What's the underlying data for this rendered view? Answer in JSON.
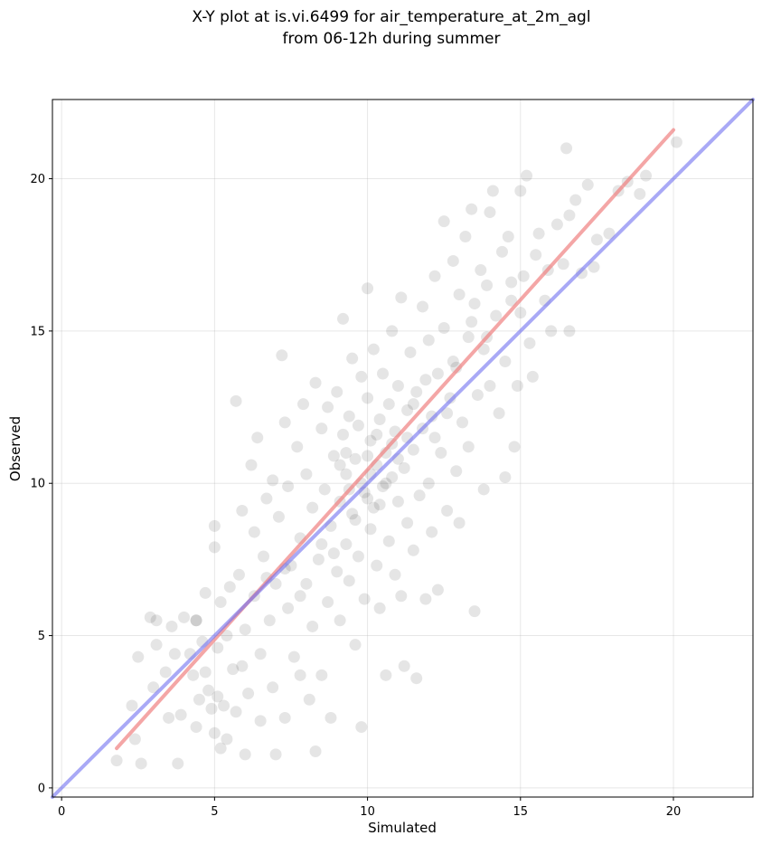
{
  "chart_data": {
    "type": "scatter",
    "title_lines": [
      "X-Y plot at is.vi.6499 for air_temperature_at_2m_agl",
      "from 06-12h during summer"
    ],
    "xlabel": "Simulated",
    "ylabel": "Observed",
    "xlim": [
      -0.3,
      22.6
    ],
    "ylim": [
      -0.3,
      22.6
    ],
    "xticks": [
      0,
      5,
      10,
      15,
      20
    ],
    "yticks": [
      0,
      5,
      10,
      15,
      20
    ],
    "grid": true,
    "point_color": "#000000",
    "point_alpha": 0.1,
    "series": [
      {
        "values": [
          [
            1.8,
            0.9
          ],
          [
            2.3,
            2.7
          ],
          [
            2.4,
            1.6
          ],
          [
            2.5,
            4.3
          ],
          [
            2.6,
            0.8
          ],
          [
            2.9,
            5.6
          ],
          [
            3.0,
            3.3
          ],
          [
            3.1,
            4.7
          ],
          [
            3.1,
            5.5
          ],
          [
            3.4,
            3.8
          ],
          [
            3.5,
            2.3
          ],
          [
            3.6,
            5.3
          ],
          [
            3.7,
            4.4
          ],
          [
            3.8,
            0.8
          ],
          [
            3.9,
            2.4
          ],
          [
            4.0,
            5.6
          ],
          [
            4.2,
            4.4
          ],
          [
            4.3,
            3.7
          ],
          [
            4.4,
            2.0
          ],
          [
            4.4,
            5.5
          ],
          [
            4.5,
            2.9
          ],
          [
            4.6,
            4.8
          ],
          [
            4.7,
            3.8
          ],
          [
            4.7,
            6.4
          ],
          [
            4.8,
            3.2
          ],
          [
            4.9,
            2.6
          ],
          [
            5.0,
            1.8
          ],
          [
            5.0,
            7.9
          ],
          [
            5.0,
            8.6
          ],
          [
            5.1,
            3.0
          ],
          [
            5.1,
            4.6
          ],
          [
            5.2,
            6.1
          ],
          [
            5.2,
            1.3
          ],
          [
            5.3,
            2.7
          ],
          [
            5.4,
            1.6
          ],
          [
            5.4,
            5.0
          ],
          [
            5.5,
            6.6
          ],
          [
            5.6,
            3.9
          ],
          [
            5.7,
            2.5
          ],
          [
            5.7,
            12.7
          ],
          [
            5.8,
            7.0
          ],
          [
            5.9,
            9.1
          ],
          [
            6.0,
            5.2
          ],
          [
            6.0,
            1.1
          ],
          [
            6.1,
            3.1
          ],
          [
            6.2,
            10.6
          ],
          [
            6.3,
            6.3
          ],
          [
            6.3,
            8.4
          ],
          [
            6.4,
            11.5
          ],
          [
            6.5,
            2.2
          ],
          [
            6.5,
            4.4
          ],
          [
            6.6,
            7.6
          ],
          [
            6.7,
            9.5
          ],
          [
            6.8,
            5.5
          ],
          [
            6.9,
            3.3
          ],
          [
            6.9,
            10.1
          ],
          [
            7.0,
            1.1
          ],
          [
            7.0,
            6.7
          ],
          [
            7.1,
            8.9
          ],
          [
            7.2,
            14.2
          ],
          [
            7.3,
            2.3
          ],
          [
            7.3,
            12.0
          ],
          [
            7.4,
            5.9
          ],
          [
            7.4,
            9.9
          ],
          [
            7.5,
            7.3
          ],
          [
            7.6,
            4.3
          ],
          [
            7.7,
            11.2
          ],
          [
            7.8,
            3.7
          ],
          [
            7.8,
            8.2
          ],
          [
            7.9,
            12.6
          ],
          [
            8.0,
            6.7
          ],
          [
            8.0,
            10.3
          ],
          [
            8.1,
            2.9
          ],
          [
            8.2,
            9.2
          ],
          [
            8.2,
            5.3
          ],
          [
            8.3,
            13.3
          ],
          [
            8.3,
            1.2
          ],
          [
            8.4,
            7.5
          ],
          [
            8.5,
            11.8
          ],
          [
            8.5,
            3.7
          ],
          [
            8.6,
            9.8
          ],
          [
            8.7,
            6.1
          ],
          [
            8.7,
            12.5
          ],
          [
            8.8,
            2.3
          ],
          [
            8.8,
            8.6
          ],
          [
            8.9,
            10.9
          ],
          [
            9.0,
            7.1
          ],
          [
            9.0,
            13.0
          ],
          [
            9.1,
            5.5
          ],
          [
            9.1,
            9.4
          ],
          [
            9.2,
            11.6
          ],
          [
            9.2,
            15.4
          ],
          [
            9.3,
            8.0
          ],
          [
            9.3,
            10.3
          ],
          [
            9.4,
            6.8
          ],
          [
            9.4,
            12.2
          ],
          [
            9.5,
            14.1
          ],
          [
            9.5,
            9.0
          ],
          [
            9.6,
            4.7
          ],
          [
            9.6,
            10.8
          ],
          [
            9.7,
            7.6
          ],
          [
            9.7,
            11.9
          ],
          [
            9.8,
            13.5
          ],
          [
            9.8,
            2.0
          ],
          [
            9.9,
            9.7
          ],
          [
            9.9,
            6.2
          ],
          [
            10.0,
            10.9
          ],
          [
            10.0,
            12.8
          ],
          [
            10.0,
            16.4
          ],
          [
            10.1,
            8.5
          ],
          [
            10.1,
            11.4
          ],
          [
            10.2,
            9.2
          ],
          [
            10.2,
            14.4
          ],
          [
            10.3,
            7.3
          ],
          [
            10.3,
            10.6
          ],
          [
            10.4,
            12.1
          ],
          [
            10.4,
            5.9
          ],
          [
            10.5,
            9.9
          ],
          [
            10.5,
            13.6
          ],
          [
            10.6,
            11.0
          ],
          [
            10.6,
            3.7
          ],
          [
            10.7,
            8.1
          ],
          [
            10.7,
            12.6
          ],
          [
            10.8,
            10.2
          ],
          [
            10.8,
            15.0
          ],
          [
            10.9,
            7.0
          ],
          [
            10.9,
            11.7
          ],
          [
            11.0,
            9.4
          ],
          [
            11.0,
            13.2
          ],
          [
            11.1,
            16.1
          ],
          [
            11.1,
            6.3
          ],
          [
            11.2,
            10.5
          ],
          [
            11.2,
            4.0
          ],
          [
            11.3,
            12.4
          ],
          [
            11.3,
            8.7
          ],
          [
            11.4,
            14.3
          ],
          [
            11.5,
            11.1
          ],
          [
            11.5,
            7.8
          ],
          [
            11.6,
            3.6
          ],
          [
            11.6,
            13.0
          ],
          [
            11.7,
            9.6
          ],
          [
            11.8,
            15.8
          ],
          [
            11.8,
            11.8
          ],
          [
            11.9,
            6.2
          ],
          [
            12.0,
            10.0
          ],
          [
            12.0,
            14.7
          ],
          [
            12.1,
            12.2
          ],
          [
            12.1,
            8.4
          ],
          [
            12.2,
            16.8
          ],
          [
            12.3,
            13.6
          ],
          [
            12.3,
            6.5
          ],
          [
            12.4,
            11.0
          ],
          [
            12.5,
            18.6
          ],
          [
            12.5,
            15.1
          ],
          [
            12.6,
            9.1
          ],
          [
            12.7,
            12.8
          ],
          [
            12.8,
            17.3
          ],
          [
            12.8,
            14.0
          ],
          [
            12.9,
            10.4
          ],
          [
            13.0,
            16.2
          ],
          [
            13.0,
            8.7
          ],
          [
            13.1,
            12.0
          ],
          [
            13.2,
            18.1
          ],
          [
            13.3,
            14.8
          ],
          [
            13.3,
            11.2
          ],
          [
            13.4,
            19.0
          ],
          [
            13.5,
            15.9
          ],
          [
            13.5,
            5.8
          ],
          [
            13.6,
            12.9
          ],
          [
            13.7,
            17.0
          ],
          [
            13.8,
            9.8
          ],
          [
            13.8,
            14.4
          ],
          [
            13.9,
            16.5
          ],
          [
            14.0,
            18.9
          ],
          [
            14.0,
            13.2
          ],
          [
            14.1,
            19.6
          ],
          [
            14.2,
            15.5
          ],
          [
            14.3,
            12.3
          ],
          [
            14.4,
            17.6
          ],
          [
            14.5,
            10.2
          ],
          [
            14.5,
            14.0
          ],
          [
            14.6,
            18.1
          ],
          [
            14.7,
            16.0
          ],
          [
            14.8,
            11.2
          ],
          [
            14.9,
            13.2
          ],
          [
            15.0,
            19.6
          ],
          [
            15.0,
            15.6
          ],
          [
            15.1,
            16.8
          ],
          [
            15.2,
            20.1
          ],
          [
            15.3,
            14.6
          ],
          [
            15.4,
            13.5
          ],
          [
            15.5,
            17.5
          ],
          [
            15.6,
            18.2
          ],
          [
            15.8,
            16.0
          ],
          [
            15.9,
            17.0
          ],
          [
            16.0,
            15.0
          ],
          [
            16.2,
            18.5
          ],
          [
            16.4,
            17.2
          ],
          [
            16.5,
            21.0
          ],
          [
            16.6,
            15.0
          ],
          [
            16.6,
            18.8
          ],
          [
            16.8,
            19.3
          ],
          [
            17.0,
            16.9
          ],
          [
            17.2,
            19.8
          ],
          [
            17.4,
            17.1
          ],
          [
            17.5,
            18.0
          ],
          [
            17.9,
            18.2
          ],
          [
            18.2,
            19.6
          ],
          [
            18.5,
            19.9
          ],
          [
            18.9,
            19.5
          ],
          [
            19.1,
            20.1
          ],
          [
            20.1,
            21.2
          ],
          [
            4.4,
            5.5
          ],
          [
            5.9,
            4.0
          ],
          [
            6.7,
            6.9
          ],
          [
            7.3,
            7.2
          ],
          [
            7.8,
            6.3
          ],
          [
            8.5,
            8.0
          ],
          [
            8.9,
            7.7
          ],
          [
            9.1,
            10.6
          ],
          [
            9.3,
            11.0
          ],
          [
            9.4,
            9.8
          ],
          [
            9.6,
            8.8
          ],
          [
            9.8,
            10.0
          ],
          [
            10.0,
            9.5
          ],
          [
            10.1,
            10.3
          ],
          [
            10.3,
            11.6
          ],
          [
            10.4,
            9.3
          ],
          [
            10.6,
            10.0
          ],
          [
            10.8,
            11.3
          ],
          [
            11.0,
            10.8
          ],
          [
            11.3,
            11.5
          ],
          [
            11.5,
            12.6
          ],
          [
            11.9,
            13.4
          ],
          [
            12.2,
            11.5
          ],
          [
            12.6,
            12.3
          ],
          [
            12.9,
            13.8
          ],
          [
            13.4,
            15.3
          ],
          [
            13.9,
            14.8
          ],
          [
            14.7,
            16.6
          ]
        ]
      }
    ],
    "lines": [
      {
        "color": "#f08080",
        "alpha": 0.7,
        "points": [
          [
            1.8,
            1.3
          ],
          [
            20.0,
            21.6
          ]
        ]
      },
      {
        "color": "#7070f0",
        "alpha": 0.6,
        "points": [
          [
            -0.3,
            -0.3
          ],
          [
            22.6,
            22.6
          ]
        ]
      }
    ]
  }
}
